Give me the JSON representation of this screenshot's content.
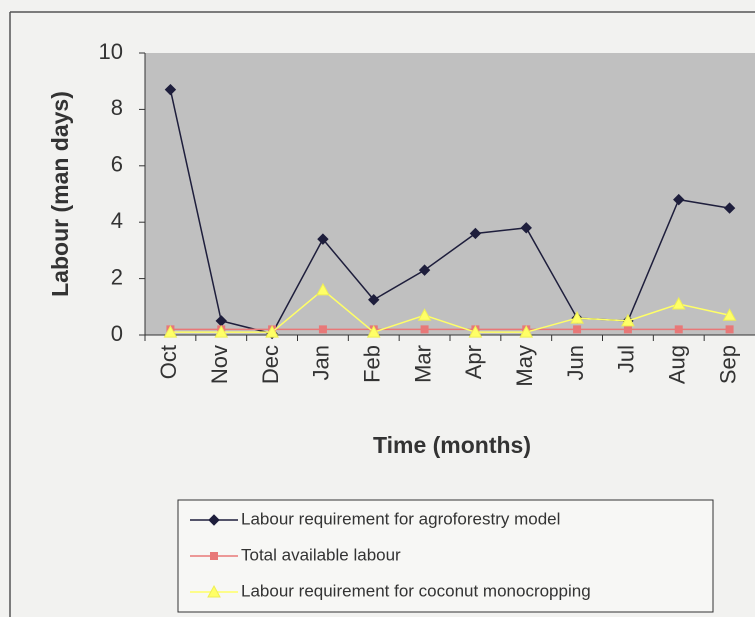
{
  "chart_data": {
    "type": "line",
    "xlabel": "Time (months)",
    "ylabel": "Labour (man days)",
    "categories": [
      "Oct",
      "Nov",
      "Dec",
      "Jan",
      "Feb",
      "Mar",
      "Apr",
      "May",
      "Jun",
      "Jul",
      "Aug",
      "Sep"
    ],
    "series": [
      {
        "name": "Labour requirement for agroforestry model",
        "color": "#1e1e3c",
        "marker": "diamond",
        "values": [
          8.7,
          0.5,
          0.05,
          3.4,
          1.25,
          2.3,
          3.6,
          3.8,
          0.6,
          0.5,
          4.8,
          4.5
        ]
      },
      {
        "name": "Total available labour",
        "color": "#e87878",
        "marker": "square",
        "values": [
          0.2,
          0.2,
          0.2,
          0.2,
          0.2,
          0.2,
          0.2,
          0.2,
          0.2,
          0.2,
          0.2,
          0.2
        ]
      },
      {
        "name": "Labour requirement for coconut monocropping",
        "color": "#ffff66",
        "marker": "triangle",
        "values": [
          0.1,
          0.1,
          0.1,
          1.6,
          0.1,
          0.7,
          0.1,
          0.1,
          0.6,
          0.5,
          1.1,
          0.7
        ]
      }
    ],
    "ylim": [
      0,
      10
    ],
    "yticks": [
      0,
      2,
      4,
      6,
      8,
      10
    ],
    "grid": false
  }
}
